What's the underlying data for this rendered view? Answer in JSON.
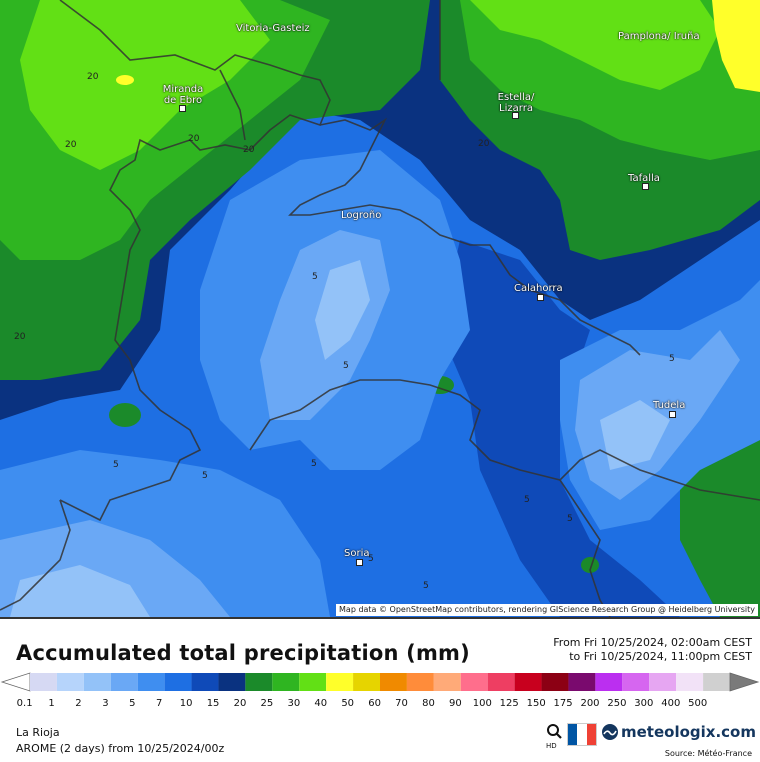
{
  "title": "Accumulated total precipitation (mm)",
  "range_from": "From Fri 10/25/2024, 02:00am CEST",
  "range_to": "to Fri 10/25/2024, 11:00pm CEST",
  "region": "La Rioja",
  "model": "AROME (2 days) from 10/25/2024/00z",
  "brand": "meteologix.com",
  "source": "Source: Météo-France",
  "attribution": "Map data © OpenStreetMap contributors, rendering GIScience Research Group @ Heidelberg University",
  "hd_label": "HD",
  "flag_colors": [
    "#0055a4",
    "#ffffff",
    "#ef4135"
  ],
  "scale": {
    "labels": [
      "0.1",
      "1",
      "2",
      "3",
      "5",
      "7",
      "10",
      "15",
      "20",
      "25",
      "30",
      "40",
      "50",
      "60",
      "70",
      "80",
      "90",
      "100",
      "125",
      "150",
      "175",
      "200",
      "250",
      "300",
      "400",
      "500"
    ],
    "colors": [
      "#d6d9f3",
      "#b6d4fb",
      "#93c2f8",
      "#6aa8f5",
      "#3f8ef0",
      "#1e6fe3",
      "#0f4ab8",
      "#0a3280",
      "#1b8a2a",
      "#2fb521",
      "#62e015",
      "#ffff2a",
      "#e6d400",
      "#f08a00",
      "#ff8c3a",
      "#ffaa78",
      "#ff6e8c",
      "#ee3e62",
      "#c8001e",
      "#8c0014",
      "#7a0a6e",
      "#bb2ff0",
      "#d666f0",
      "#e6a6f2",
      "#f2e2f7",
      "#d0d0d0"
    ]
  },
  "cities": [
    {
      "name": "Vitoria-Gasteiz"
    },
    {
      "name": "Pamplona/ Iruña"
    },
    {
      "name": "Miranda de Ebro"
    },
    {
      "name": "Estella/ Lizarra"
    },
    {
      "name": "Tafalla"
    },
    {
      "name": "Logroño"
    },
    {
      "name": "Calahorra"
    },
    {
      "name": "Tudela"
    },
    {
      "name": "Soria"
    }
  ],
  "contour_labels": [
    "20",
    "20",
    "20",
    "20",
    "20",
    "20",
    "5",
    "5",
    "5",
    "5",
    "5",
    "5",
    "5",
    "5",
    "5",
    "5"
  ]
}
